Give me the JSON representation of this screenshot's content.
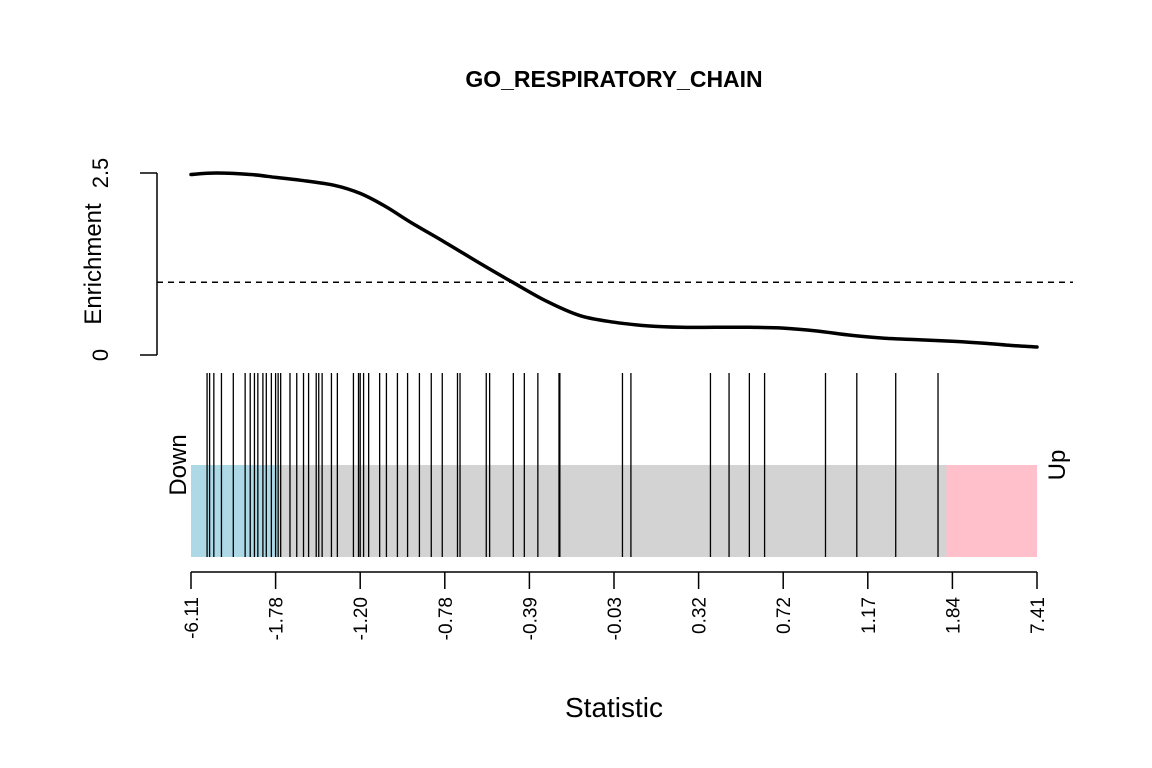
{
  "chart_data": {
    "type": "barcode",
    "title": "GO_RESPIRATORY_CHAIN",
    "xlabel": "Statistic",
    "ylabel": "Enrichment",
    "enrichment_ylim": [
      0,
      2.5
    ],
    "enrichment_yticks": [
      "0",
      "2.5"
    ],
    "reference_line": 1,
    "enrichment_curve": {
      "x_rank": [
        0.0,
        0.03,
        0.07,
        0.1,
        0.13,
        0.17,
        0.2,
        0.23,
        0.26,
        0.3,
        0.34,
        0.38,
        0.42,
        0.46,
        0.5,
        0.54,
        0.58,
        0.62,
        0.66,
        0.7,
        0.74,
        0.78,
        0.82,
        0.86,
        0.9,
        0.94,
        0.97,
        1.0
      ],
      "values": [
        2.48,
        2.5,
        2.48,
        2.44,
        2.4,
        2.33,
        2.22,
        2.04,
        1.82,
        1.55,
        1.27,
        1.0,
        0.74,
        0.54,
        0.45,
        0.4,
        0.38,
        0.38,
        0.38,
        0.37,
        0.33,
        0.27,
        0.23,
        0.21,
        0.19,
        0.16,
        0.13,
        0.11
      ]
    },
    "x_ticks": [
      "-6.11",
      "-1.78",
      "-1.20",
      "-0.78",
      "-0.39",
      "-0.03",
      "0.32",
      "0.72",
      "1.17",
      "1.84",
      "7.41"
    ],
    "down_label": "Down",
    "up_label": "Up",
    "down_region_end_rank": 0.102,
    "up_region_start_rank": 0.893,
    "region_colors": {
      "down": "#ADD8E6",
      "middle": "#D3D3D3",
      "up": "#FFC0CB"
    },
    "barcode_ranks": [
      0.019,
      0.022,
      0.027,
      0.036,
      0.05,
      0.064,
      0.07,
      0.075,
      0.079,
      0.085,
      0.089,
      0.095,
      0.1,
      0.103,
      0.106,
      0.117,
      0.125,
      0.133,
      0.139,
      0.148,
      0.151,
      0.155,
      0.166,
      0.173,
      0.192,
      0.198,
      0.2,
      0.204,
      0.21,
      0.223,
      0.231,
      0.244,
      0.256,
      0.27,
      0.284,
      0.297,
      0.315,
      0.318,
      0.349,
      0.353,
      0.381,
      0.394,
      0.41,
      0.435,
      0.436,
      0.51,
      0.52,
      0.614,
      0.636,
      0.66,
      0.678,
      0.75,
      0.787,
      0.833,
      0.883
    ]
  }
}
